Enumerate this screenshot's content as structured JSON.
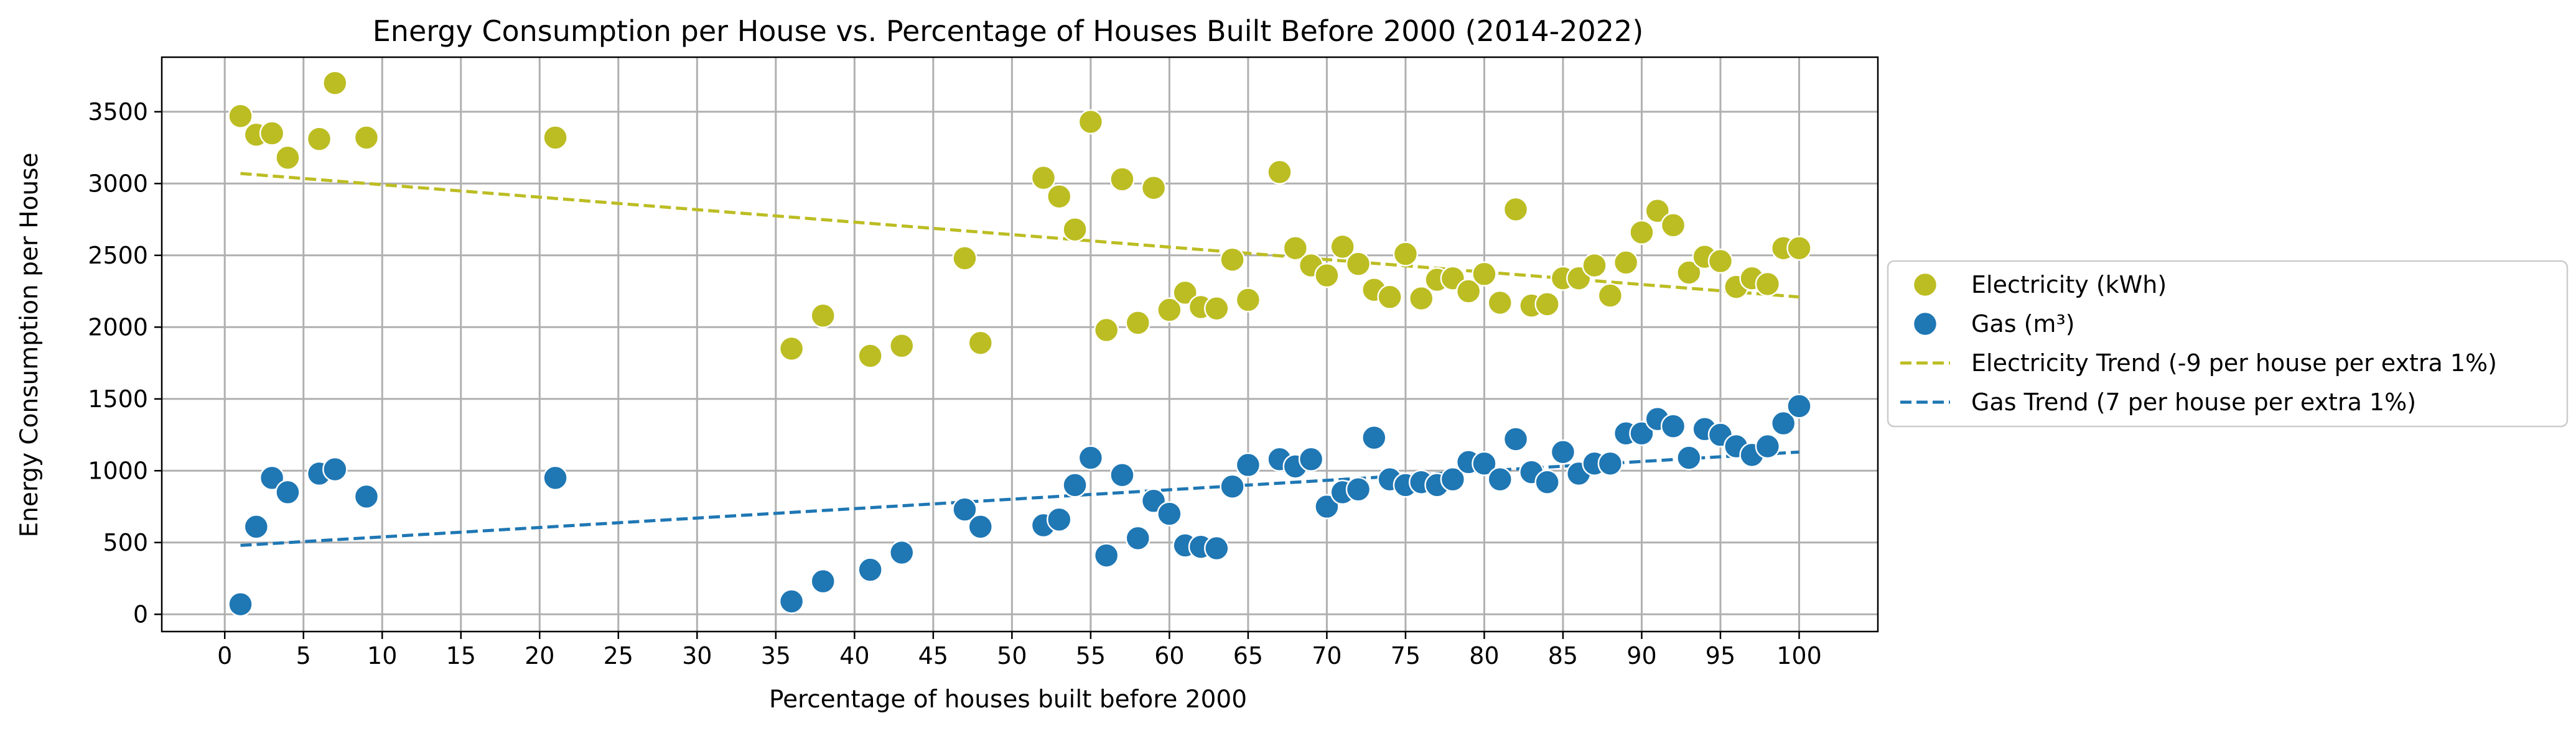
{
  "chart_data": {
    "type": "scatter",
    "title": "Energy Consumption per House vs. Percentage of Houses Built Before 2000 (2014-2022)",
    "xlabel": "Percentage of houses built before 2000",
    "ylabel": "Energy Consumption per House",
    "xlim": [
      -4,
      105
    ],
    "ylim": [
      -120,
      3880
    ],
    "xticks": [
      0,
      5,
      10,
      15,
      20,
      25,
      30,
      35,
      40,
      45,
      50,
      55,
      60,
      65,
      70,
      75,
      80,
      85,
      90,
      95,
      100
    ],
    "yticks": [
      0,
      500,
      1000,
      1500,
      2000,
      2500,
      3000,
      3500
    ],
    "grid": true,
    "legend_position": "center-right-outside",
    "series": [
      {
        "name": "Electricity (kWh)",
        "color": "#bcbd22",
        "points": [
          [
            1,
            3470
          ],
          [
            2,
            3340
          ],
          [
            3,
            3350
          ],
          [
            4,
            3180
          ],
          [
            6,
            3310
          ],
          [
            7,
            3700
          ],
          [
            9,
            3320
          ],
          [
            21,
            3320
          ],
          [
            36,
            1850
          ],
          [
            38,
            2080
          ],
          [
            41,
            1800
          ],
          [
            43,
            1870
          ],
          [
            47,
            2480
          ],
          [
            48,
            1890
          ],
          [
            52,
            3040
          ],
          [
            53,
            2910
          ],
          [
            54,
            2680
          ],
          [
            55,
            3430
          ],
          [
            56,
            1980
          ],
          [
            57,
            3030
          ],
          [
            58,
            2030
          ],
          [
            59,
            2970
          ],
          [
            60,
            2120
          ],
          [
            61,
            2240
          ],
          [
            62,
            2140
          ],
          [
            63,
            2130
          ],
          [
            64,
            2470
          ],
          [
            65,
            2190
          ],
          [
            67,
            3080
          ],
          [
            68,
            2550
          ],
          [
            69,
            2430
          ],
          [
            70,
            2360
          ],
          [
            71,
            2560
          ],
          [
            72,
            2440
          ],
          [
            73,
            2260
          ],
          [
            74,
            2210
          ],
          [
            75,
            2510
          ],
          [
            76,
            2200
          ],
          [
            77,
            2330
          ],
          [
            78,
            2340
          ],
          [
            79,
            2250
          ],
          [
            80,
            2370
          ],
          [
            81,
            2170
          ],
          [
            82,
            2820
          ],
          [
            83,
            2150
          ],
          [
            84,
            2160
          ],
          [
            85,
            2340
          ],
          [
            86,
            2340
          ],
          [
            87,
            2430
          ],
          [
            88,
            2220
          ],
          [
            89,
            2450
          ],
          [
            90,
            2660
          ],
          [
            91,
            2810
          ],
          [
            92,
            2710
          ],
          [
            93,
            2380
          ],
          [
            94,
            2490
          ],
          [
            95,
            2460
          ],
          [
            96,
            2280
          ],
          [
            97,
            2340
          ],
          [
            98,
            2300
          ],
          [
            99,
            2550
          ],
          [
            100,
            2550
          ]
        ]
      },
      {
        "name": "Gas (m³)",
        "color": "#1f77b4",
        "points": [
          [
            1,
            70
          ],
          [
            2,
            610
          ],
          [
            3,
            950
          ],
          [
            4,
            850
          ],
          [
            6,
            980
          ],
          [
            7,
            1010
          ],
          [
            9,
            820
          ],
          [
            21,
            950
          ],
          [
            36,
            90
          ],
          [
            38,
            230
          ],
          [
            41,
            310
          ],
          [
            43,
            430
          ],
          [
            47,
            730
          ],
          [
            48,
            610
          ],
          [
            52,
            620
          ],
          [
            53,
            660
          ],
          [
            54,
            900
          ],
          [
            55,
            1090
          ],
          [
            56,
            410
          ],
          [
            57,
            970
          ],
          [
            58,
            530
          ],
          [
            59,
            790
          ],
          [
            60,
            700
          ],
          [
            61,
            480
          ],
          [
            62,
            470
          ],
          [
            63,
            460
          ],
          [
            64,
            890
          ],
          [
            65,
            1040
          ],
          [
            67,
            1080
          ],
          [
            68,
            1030
          ],
          [
            69,
            1080
          ],
          [
            70,
            750
          ],
          [
            71,
            850
          ],
          [
            72,
            870
          ],
          [
            73,
            1230
          ],
          [
            74,
            940
          ],
          [
            75,
            900
          ],
          [
            76,
            920
          ],
          [
            77,
            900
          ],
          [
            78,
            940
          ],
          [
            79,
            1060
          ],
          [
            80,
            1050
          ],
          [
            81,
            940
          ],
          [
            82,
            1220
          ],
          [
            83,
            990
          ],
          [
            84,
            920
          ],
          [
            85,
            1130
          ],
          [
            86,
            980
          ],
          [
            87,
            1050
          ],
          [
            88,
            1050
          ],
          [
            89,
            1260
          ],
          [
            90,
            1260
          ],
          [
            91,
            1360
          ],
          [
            92,
            1310
          ],
          [
            93,
            1090
          ],
          [
            94,
            1290
          ],
          [
            95,
            1250
          ],
          [
            96,
            1170
          ],
          [
            97,
            1110
          ],
          [
            98,
            1170
          ],
          [
            99,
            1330
          ],
          [
            100,
            1450
          ]
        ]
      }
    ],
    "trends": [
      {
        "name": "Electricity Trend (-9 per house per extra 1%)",
        "color": "#bcbd22",
        "x": [
          1,
          100
        ],
        "y": [
          3070,
          2210
        ]
      },
      {
        "name": "Gas Trend (7 per house per extra 1%)",
        "color": "#1f77b4",
        "x": [
          1,
          100
        ],
        "y": [
          480,
          1130
        ]
      }
    ]
  }
}
